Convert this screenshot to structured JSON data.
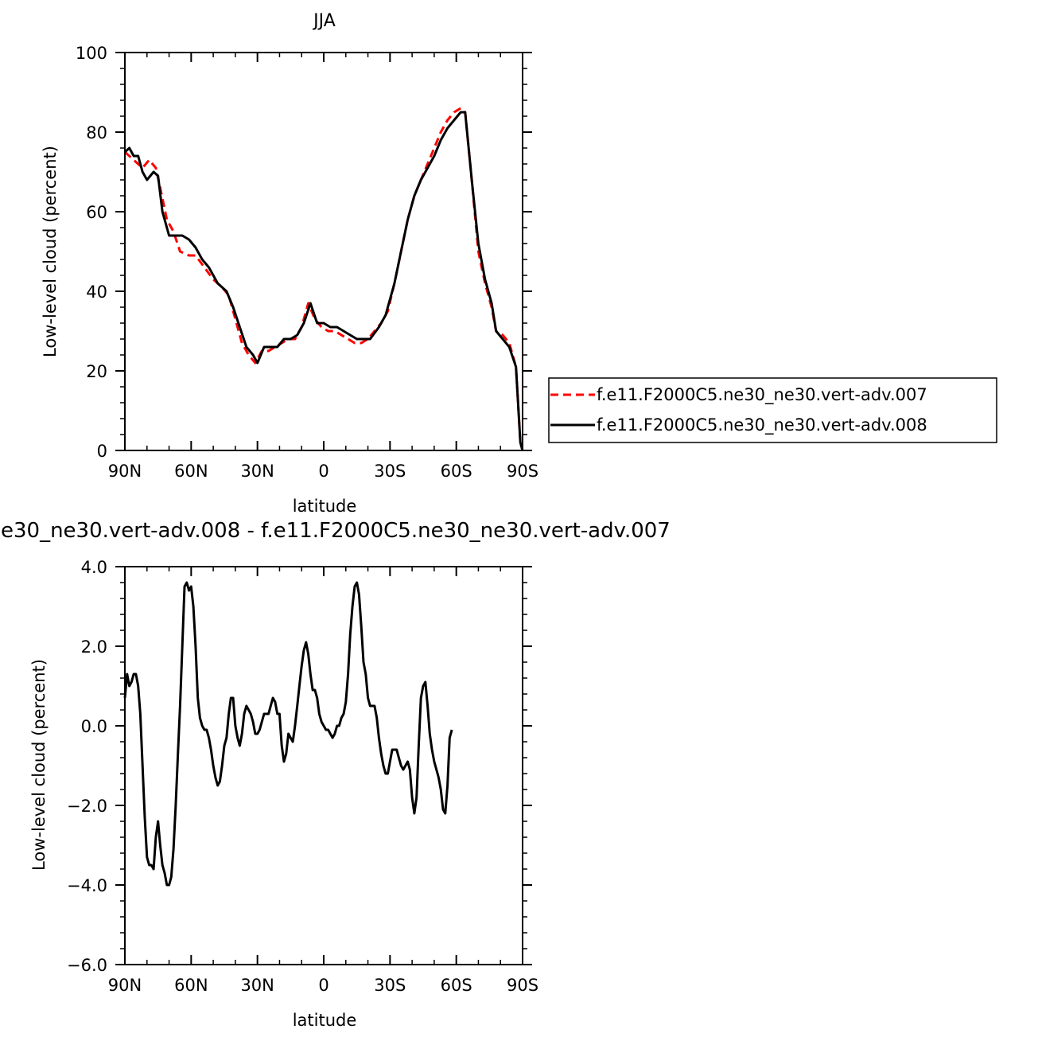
{
  "chart_data": [
    {
      "type": "line",
      "title": "JJA",
      "xlabel": "latitude",
      "ylabel": "Low-level cloud (percent)",
      "xlim": [
        90,
        -90
      ],
      "ylim": [
        0,
        100
      ],
      "x_ticks": [
        90,
        60,
        30,
        0,
        -30,
        -60,
        -90
      ],
      "x_tick_labels": [
        "90N",
        "60N",
        "30N",
        "0",
        "30S",
        "60S",
        "90S"
      ],
      "y_ticks": [
        0,
        20,
        40,
        60,
        80,
        100
      ],
      "y_tick_labels": [
        "0",
        "20",
        "40",
        "60",
        "80",
        "100"
      ],
      "legend_position": "right",
      "series": [
        {
          "name": "f.e11.F2000C5.ne30_ne30.vert-adv.007",
          "color": "#ff0000",
          "style": "dashed",
          "points": [
            [
              90,
              75
            ],
            [
              86,
              73
            ],
            [
              82,
              71
            ],
            [
              79,
              73
            ],
            [
              76,
              71
            ],
            [
              74,
              66
            ],
            [
              71,
              58
            ],
            [
              68,
              55
            ],
            [
              65,
              50
            ],
            [
              61,
              49
            ],
            [
              58,
              49
            ],
            [
              54,
              46
            ],
            [
              50,
              43
            ],
            [
              46,
              41
            ],
            [
              43,
              39
            ],
            [
              40,
              33
            ],
            [
              37,
              27
            ],
            [
              34,
              24
            ],
            [
              31,
              22
            ],
            [
              28,
              25
            ],
            [
              25,
              25
            ],
            [
              22,
              26
            ],
            [
              19,
              27
            ],
            [
              16,
              28
            ],
            [
              13,
              28
            ],
            [
              10,
              31
            ],
            [
              7,
              37
            ],
            [
              4,
              33
            ],
            [
              1,
              31
            ],
            [
              -2,
              30
            ],
            [
              -5,
              30
            ],
            [
              -8,
              29
            ],
            [
              -11,
              28
            ],
            [
              -14,
              27
            ],
            [
              -17,
              27
            ],
            [
              -20,
              28
            ],
            [
              -23,
              30
            ],
            [
              -26,
              32
            ],
            [
              -29,
              35
            ],
            [
              -32,
              42
            ],
            [
              -35,
              50
            ],
            [
              -38,
              58
            ],
            [
              -41,
              64
            ],
            [
              -44,
              68
            ],
            [
              -47,
              72
            ],
            [
              -50,
              76
            ],
            [
              -53,
              80
            ],
            [
              -56,
              83
            ],
            [
              -59,
              85
            ],
            [
              -62,
              86
            ],
            [
              -64,
              85
            ],
            [
              -67,
              68
            ],
            [
              -70,
              50
            ],
            [
              -73,
              42
            ],
            [
              -76,
              36
            ],
            [
              -78,
              30
            ],
            [
              -81,
              29
            ],
            [
              -84,
              27
            ],
            [
              -87,
              21
            ],
            [
              -89,
              2
            ],
            [
              -90,
              0
            ]
          ]
        },
        {
          "name": "f.e11.F2000C5.ne30_ne30.vert-adv.008",
          "color": "#000000",
          "style": "solid",
          "points": [
            [
              90,
              75
            ],
            [
              88,
              76
            ],
            [
              86,
              74
            ],
            [
              84,
              74
            ],
            [
              82,
              70
            ],
            [
              80,
              68
            ],
            [
              77,
              70
            ],
            [
              75,
              69
            ],
            [
              73,
              60
            ],
            [
              70,
              54
            ],
            [
              67,
              54
            ],
            [
              64,
              54
            ],
            [
              61,
              53
            ],
            [
              58,
              51
            ],
            [
              55,
              48
            ],
            [
              52,
              46
            ],
            [
              48,
              42
            ],
            [
              44,
              40
            ],
            [
              41,
              36
            ],
            [
              38,
              31
            ],
            [
              35,
              26
            ],
            [
              32,
              24
            ],
            [
              30,
              22
            ],
            [
              27,
              26
            ],
            [
              24,
              26
            ],
            [
              21,
              26
            ],
            [
              18,
              28
            ],
            [
              15,
              28
            ],
            [
              12,
              29
            ],
            [
              9,
              32
            ],
            [
              6,
              37
            ],
            [
              3,
              32
            ],
            [
              0,
              32
            ],
            [
              -3,
              31
            ],
            [
              -6,
              31
            ],
            [
              -9,
              30
            ],
            [
              -12,
              29
            ],
            [
              -15,
              28
            ],
            [
              -18,
              28
            ],
            [
              -21,
              28
            ],
            [
              -25,
              31
            ],
            [
              -28,
              34
            ],
            [
              -32,
              42
            ],
            [
              -35,
              50
            ],
            [
              -38,
              58
            ],
            [
              -41,
              64
            ],
            [
              -44,
              68
            ],
            [
              -47,
              71
            ],
            [
              -50,
              74
            ],
            [
              -53,
              78
            ],
            [
              -56,
              81
            ],
            [
              -59,
              83
            ],
            [
              -62,
              85
            ],
            [
              -64,
              85
            ],
            [
              -67,
              68
            ],
            [
              -70,
              52
            ],
            [
              -73,
              43
            ],
            [
              -76,
              37
            ],
            [
              -78,
              30
            ],
            [
              -81,
              28
            ],
            [
              -84,
              26
            ],
            [
              -87,
              21
            ],
            [
              -89,
              2
            ],
            [
              -90,
              0
            ]
          ]
        }
      ]
    },
    {
      "type": "line",
      "title": "e30_ne30.vert-adv.008 - f.e11.F2000C5.ne30_ne30.vert-adv.007",
      "xlabel": "latitude",
      "ylabel": "Low-level cloud (percent)",
      "xlim": [
        90,
        -90
      ],
      "ylim": [
        -6.0,
        4.0
      ],
      "x_ticks": [
        90,
        60,
        30,
        0,
        -30,
        -60,
        -90
      ],
      "x_tick_labels": [
        "90N",
        "60N",
        "30N",
        "0",
        "30S",
        "60S",
        "90S"
      ],
      "y_ticks": [
        -6,
        -4,
        -2,
        0,
        2,
        4
      ],
      "y_tick_labels": [
        "-6.0",
        "-4.0",
        "-2.0",
        "0.0",
        "2.0",
        "4.0"
      ],
      "series": [
        {
          "name": "",
          "color": "#000000",
          "style": "solid",
          "points": [
            [
              90,
              0.7
            ],
            [
              89,
              1.3
            ],
            [
              88,
              1.0
            ],
            [
              87,
              1.1
            ],
            [
              86,
              1.3
            ],
            [
              85,
              1.3
            ],
            [
              84,
              1.0
            ],
            [
              83,
              0.3
            ],
            [
              82,
              -1.0
            ],
            [
              81,
              -2.3
            ],
            [
              80,
              -3.3
            ],
            [
              79,
              -3.5
            ],
            [
              78,
              -3.5
            ],
            [
              77,
              -3.6
            ],
            [
              76,
              -2.8
            ],
            [
              75,
              -2.4
            ],
            [
              74,
              -3.0
            ],
            [
              73,
              -3.5
            ],
            [
              72,
              -3.7
            ],
            [
              71,
              -4.0
            ],
            [
              70,
              -4.0
            ],
            [
              69,
              -3.8
            ],
            [
              68,
              -3.1
            ],
            [
              67,
              -2.0
            ],
            [
              66,
              -0.7
            ],
            [
              65,
              0.5
            ],
            [
              64,
              2.0
            ],
            [
              63,
              3.5
            ],
            [
              62,
              3.6
            ],
            [
              61,
              3.4
            ],
            [
              60,
              3.5
            ],
            [
              59,
              3.0
            ],
            [
              58,
              2.0
            ],
            [
              57,
              0.7
            ],
            [
              56,
              0.2
            ],
            [
              55,
              0.0
            ],
            [
              54,
              -0.1
            ],
            [
              53,
              -0.1
            ],
            [
              52,
              -0.3
            ],
            [
              51,
              -0.6
            ],
            [
              50,
              -1.0
            ],
            [
              49,
              -1.3
            ],
            [
              48,
              -1.5
            ],
            [
              47,
              -1.4
            ],
            [
              46,
              -1.0
            ],
            [
              45,
              -0.5
            ],
            [
              44,
              -0.3
            ],
            [
              43,
              0.3
            ],
            [
              42,
              0.7
            ],
            [
              41,
              0.7
            ],
            [
              40,
              0.0
            ],
            [
              39,
              -0.3
            ],
            [
              38,
              -0.5
            ],
            [
              37,
              -0.2
            ],
            [
              36,
              0.3
            ],
            [
              35,
              0.5
            ],
            [
              34,
              0.4
            ],
            [
              33,
              0.3
            ],
            [
              32,
              0.1
            ],
            [
              31,
              -0.2
            ],
            [
              30,
              -0.2
            ],
            [
              29,
              -0.1
            ],
            [
              28,
              0.1
            ],
            [
              27,
              0.3
            ],
            [
              26,
              0.3
            ],
            [
              25,
              0.3
            ],
            [
              24,
              0.5
            ],
            [
              23,
              0.7
            ],
            [
              22,
              0.6
            ],
            [
              21,
              0.3
            ],
            [
              20,
              0.3
            ],
            [
              19,
              -0.5
            ],
            [
              18,
              -0.9
            ],
            [
              17,
              -0.7
            ],
            [
              16,
              -0.2
            ],
            [
              15,
              -0.3
            ],
            [
              14,
              -0.4
            ],
            [
              13,
              0.0
            ],
            [
              12,
              0.5
            ],
            [
              11,
              1.0
            ],
            [
              10,
              1.5
            ],
            [
              9,
              1.9
            ],
            [
              8,
              2.1
            ],
            [
              7,
              1.8
            ],
            [
              6,
              1.3
            ],
            [
              5,
              0.9
            ],
            [
              4,
              0.9
            ],
            [
              3,
              0.7
            ],
            [
              2,
              0.3
            ],
            [
              1,
              0.1
            ],
            [
              0,
              0.0
            ],
            [
              -1,
              -0.1
            ],
            [
              -2,
              -0.1
            ],
            [
              -3,
              -0.2
            ],
            [
              -4,
              -0.3
            ],
            [
              -5,
              -0.2
            ],
            [
              -6,
              0.0
            ],
            [
              -7,
              0.0
            ],
            [
              -8,
              0.2
            ],
            [
              -9,
              0.3
            ],
            [
              -10,
              0.6
            ],
            [
              -11,
              1.3
            ],
            [
              -12,
              2.3
            ],
            [
              -13,
              3.0
            ],
            [
              -14,
              3.5
            ],
            [
              -15,
              3.6
            ],
            [
              -16,
              3.3
            ],
            [
              -17,
              2.5
            ],
            [
              -18,
              1.6
            ],
            [
              -19,
              1.3
            ],
            [
              -20,
              0.7
            ],
            [
              -21,
              0.5
            ],
            [
              -22,
              0.5
            ],
            [
              -23,
              0.5
            ],
            [
              -24,
              0.2
            ],
            [
              -25,
              -0.3
            ],
            [
              -26,
              -0.7
            ],
            [
              -27,
              -1.0
            ],
            [
              -28,
              -1.2
            ],
            [
              -29,
              -1.2
            ],
            [
              -30,
              -0.9
            ],
            [
              -31,
              -0.6
            ],
            [
              -32,
              -0.6
            ],
            [
              -33,
              -0.6
            ],
            [
              -34,
              -0.8
            ],
            [
              -35,
              -1.0
            ],
            [
              -36,
              -1.1
            ],
            [
              -37,
              -1.0
            ],
            [
              -38,
              -0.9
            ],
            [
              -39,
              -1.1
            ],
            [
              -40,
              -1.8
            ],
            [
              -41,
              -2.2
            ],
            [
              -42,
              -1.8
            ],
            [
              -43,
              -0.5
            ],
            [
              -44,
              0.7
            ],
            [
              -45,
              1.0
            ],
            [
              -46,
              1.1
            ],
            [
              -47,
              0.5
            ],
            [
              -48,
              -0.2
            ],
            [
              -49,
              -0.6
            ],
            [
              -50,
              -0.9
            ],
            [
              -51,
              -1.1
            ],
            [
              -52,
              -1.3
            ],
            [
              -53,
              -1.6
            ],
            [
              -54,
              -2.1
            ],
            [
              -55,
              -2.2
            ],
            [
              -56,
              -1.5
            ],
            [
              -57,
              -0.3
            ],
            [
              -58,
              -0.1
            ]
          ]
        }
      ]
    }
  ]
}
